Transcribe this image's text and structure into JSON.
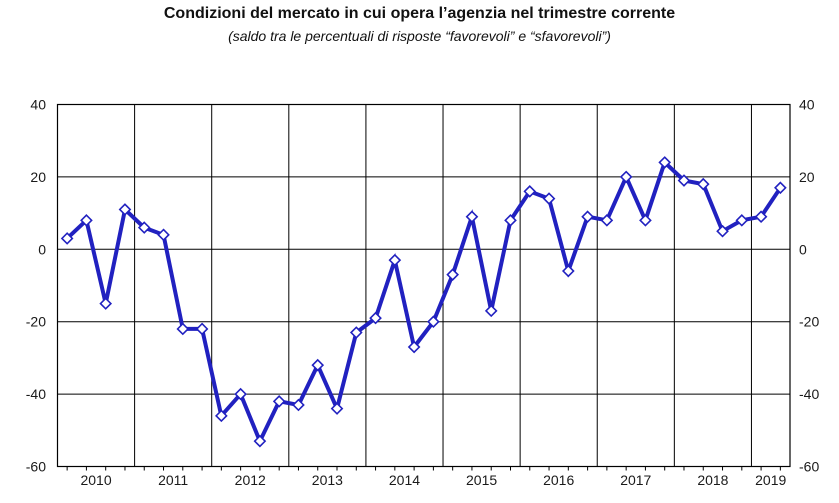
{
  "title": "Condizioni del mercato in cui opera l’agenzia nel trimestre corrente",
  "subtitle": "(saldo tra le percentuali di risposte “favorevoli” e “sfavorevoli”)",
  "chart_data": {
    "type": "line",
    "title": "Condizioni del mercato in cui opera l’agenzia nel trimestre corrente",
    "subtitle": "(saldo tra le percentuali di risposte “favorevoli” e “sfavorevoli”)",
    "x_unit": "quarter",
    "quarters_per_year": 4,
    "year_labels": [
      "2010",
      "2011",
      "2012",
      "2013",
      "2014",
      "2015",
      "2016",
      "2017",
      "2018",
      "2019"
    ],
    "series": [
      {
        "name": "saldo",
        "values": [
          3,
          8,
          -15,
          11,
          6,
          4,
          -22,
          -22,
          -46,
          -40,
          -53,
          -42,
          -43,
          -32,
          -44,
          -23,
          -19,
          -3,
          -27,
          -20,
          -7,
          9,
          -17,
          8,
          16,
          14,
          -6,
          9,
          8,
          20,
          8,
          24,
          19,
          18,
          5,
          8,
          9,
          17
        ]
      }
    ],
    "ylim": [
      -60,
      40
    ],
    "yticks": [
      40,
      20,
      0,
      -20,
      -40,
      -60
    ],
    "y_axis_sides": "both",
    "grid": "on",
    "legend": "none",
    "line_color": "#2121c0",
    "marker": "diamond",
    "marker_fill": "#ffffff",
    "grid_color": "#000000",
    "text_color": "#1a1a1a",
    "background": "#ffffff"
  }
}
